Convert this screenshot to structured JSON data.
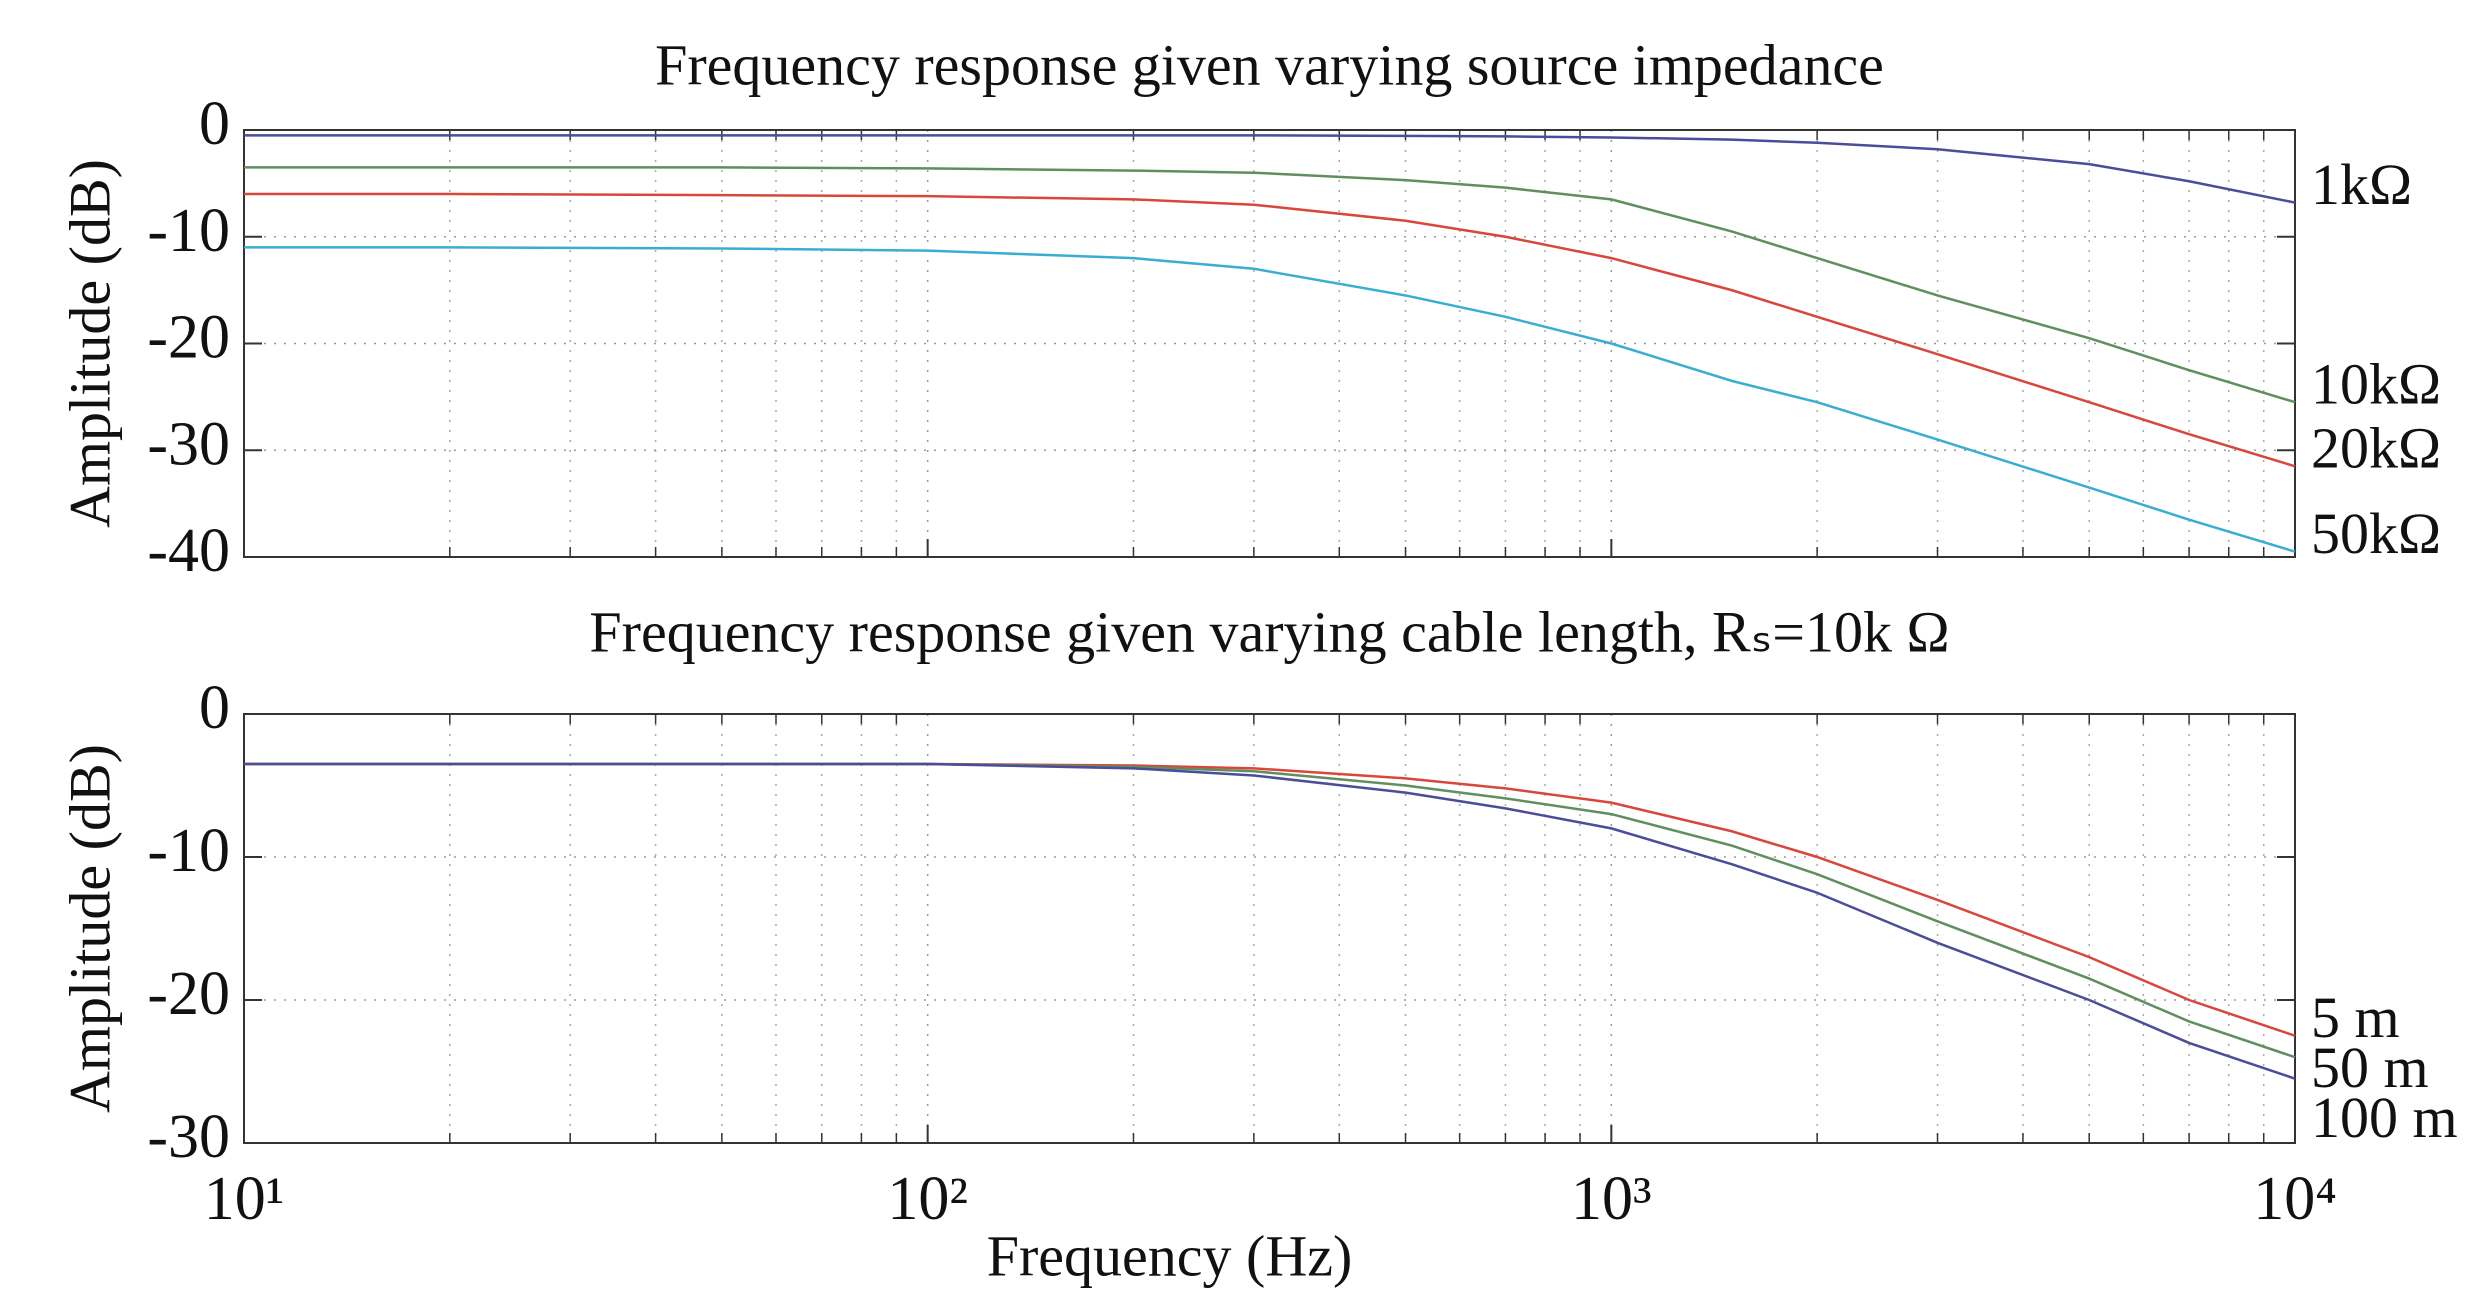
{
  "chart_data": [
    {
      "type": "line",
      "title": "Frequency response given varying source impedance",
      "ylabel": "Amplitude (dB)",
      "xscale": "log",
      "xlim": [
        10,
        10000
      ],
      "xticks": [
        10,
        100,
        1000,
        10000
      ],
      "ylim": [
        -40,
        0
      ],
      "yticks": [
        -40,
        -30,
        -20,
        -10,
        0
      ],
      "grid": true,
      "minor_grid": true,
      "x": [
        10,
        20,
        50,
        100,
        200,
        300,
        500,
        700,
        1000,
        1500,
        2000,
        3000,
        5000,
        7000,
        10000
      ],
      "series": [
        {
          "name": "1kΩ",
          "color": "#4b4c9a",
          "values": [
            -0.5,
            -0.5,
            -0.5,
            -0.5,
            -0.5,
            -0.5,
            -0.55,
            -0.6,
            -0.7,
            -0.9,
            -1.2,
            -1.8,
            -3.2,
            -4.8,
            -6.8
          ]
        },
        {
          "name": "10kΩ",
          "color": "#5f8f5f",
          "values": [
            -3.5,
            -3.5,
            -3.5,
            -3.6,
            -3.8,
            -4.0,
            -4.7,
            -5.4,
            -6.5,
            -9.5,
            -12,
            -15.5,
            -19.5,
            -22.5,
            -25.5
          ]
        },
        {
          "name": "20kΩ",
          "color": "#d9463a",
          "values": [
            -6,
            -6,
            -6.1,
            -6.2,
            -6.5,
            -7,
            -8.5,
            -10,
            -12,
            -15,
            -17.5,
            -21,
            -25.5,
            -28.5,
            -31.5
          ]
        },
        {
          "name": "50kΩ",
          "color": "#3aaed0",
          "values": [
            -11,
            -11,
            -11.1,
            -11.3,
            -12,
            -13,
            -15.5,
            -17.5,
            -20,
            -23.5,
            -25.5,
            -29,
            -33.5,
            -36.5,
            -39.5
          ]
        }
      ]
    },
    {
      "type": "line",
      "title": "Frequency response given varying cable length, Rₛ=10k Ω",
      "ylabel": "Amplitude (dB)",
      "xlabel": "Frequency (Hz)",
      "xscale": "log",
      "xlim": [
        10,
        10000
      ],
      "xticks": [
        {
          "value": 10,
          "label": "10¹"
        },
        {
          "value": 100,
          "label": "10²"
        },
        {
          "value": 1000,
          "label": "10³"
        },
        {
          "value": 10000,
          "label": "10⁴"
        }
      ],
      "ylim": [
        -30,
        0
      ],
      "yticks": [
        -30,
        -20,
        -10,
        0
      ],
      "grid": true,
      "minor_grid": true,
      "x": [
        10,
        20,
        50,
        100,
        200,
        300,
        500,
        700,
        1000,
        1500,
        2000,
        3000,
        5000,
        7000,
        10000
      ],
      "series": [
        {
          "name": "5 m",
          "color": "#d9463a",
          "values": [
            -3.5,
            -3.5,
            -3.5,
            -3.5,
            -3.6,
            -3.8,
            -4.5,
            -5.2,
            -6.2,
            -8.2,
            -10,
            -13,
            -17,
            -20,
            -22.5
          ]
        },
        {
          "name": "50 m",
          "color": "#5f8f5f",
          "values": [
            -3.5,
            -3.5,
            -3.5,
            -3.5,
            -3.7,
            -4.0,
            -5,
            -5.9,
            -7,
            -9.2,
            -11.2,
            -14.5,
            -18.5,
            -21.5,
            -24
          ]
        },
        {
          "name": "100 m",
          "color": "#4b4c9a",
          "values": [
            -3.5,
            -3.5,
            -3.5,
            -3.5,
            -3.8,
            -4.3,
            -5.5,
            -6.6,
            -8,
            -10.5,
            -12.5,
            -16,
            -20,
            -23,
            -25.5
          ]
        }
      ]
    }
  ]
}
